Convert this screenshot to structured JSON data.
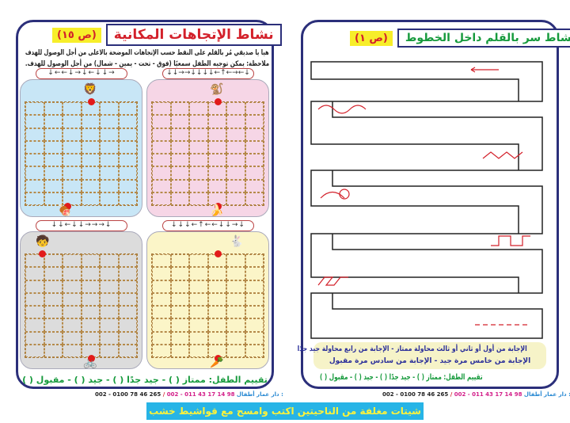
{
  "left_page": {
    "badge": "(ص ١٥)",
    "title": "نشاط الإتجاهات المكانية",
    "instructions": [
      "هيا يا صديقي مُر بالقلم على النقط حسب الإتجاهات الموضحة بالاعلى من أجل الوصول للهدف",
      "ملاحظة: يمكن توجيه الطفل سمعيًا (فوق - تحت - يمين - شمال) من أجل الوصول للهدف."
    ],
    "cards": [
      {
        "arrows": "↓←←↓→↓←↓↓→",
        "color": "#c8e6f6",
        "start_icon": "lion-icon",
        "goal_icon": "meat-icon",
        "start": "🦁",
        "goal": "🍖"
      },
      {
        "arrows": "↓↓→→↓↓↓↓←↑←→←↓",
        "color": "#f6d6e6",
        "start_icon": "monkey-icon",
        "goal_icon": "banana-icon",
        "start": "🐒",
        "goal": "🍌"
      },
      {
        "arrows": "↓↓←↓↓→→→↓",
        "color": "#dcdcdc",
        "start_icon": "boy-icon",
        "goal_icon": "bicycle-icon",
        "start": "🧒",
        "goal": "🚲"
      },
      {
        "arrows": "↓↓↓←↑←←↓↓→↓",
        "color": "#fbf5c8",
        "start_icon": "rabbit-icon",
        "goal_icon": "carrot-icon",
        "start": "🐇",
        "goal": "🥕"
      }
    ],
    "rating": "تقييم الطفل: ممتاز ( ) - جيد جدًا ( ) - جيد ( ) - مقبول ( )"
  },
  "right_page": {
    "badge": "(ص ١)",
    "title": "نشاط سر بالقلم داخل الخطوط",
    "answer_lines": [
      "الإجابة من أول أو ثاني أو ثالث محاولة ممتاز - الإجابة من رابع محاولة جيد جدًا",
      "الإجابة من خامس مرة جيد - الإجابة من سادس مرة مقبول"
    ],
    "rating": "تقييم الطفل: ممتاز ( ) - جيد جدًا ( ) - جيد ( ) - مقبول ( )"
  },
  "footer": {
    "publisher": "دار عمار أطفال :",
    "phone1": "002 - 011 43 17 14 98",
    "separator": "/",
    "phone2": "002 - 0100 78 46 265"
  },
  "banner": "شيتات مغلفة من الناحيتين اكتب وامسح مع قواشيط خشب",
  "colors": {
    "border": "#2b2f7a",
    "title_red": "#d3202a",
    "title_green": "#169a3c",
    "badge": "#f7ee2a",
    "banner": "#27b4e6"
  }
}
